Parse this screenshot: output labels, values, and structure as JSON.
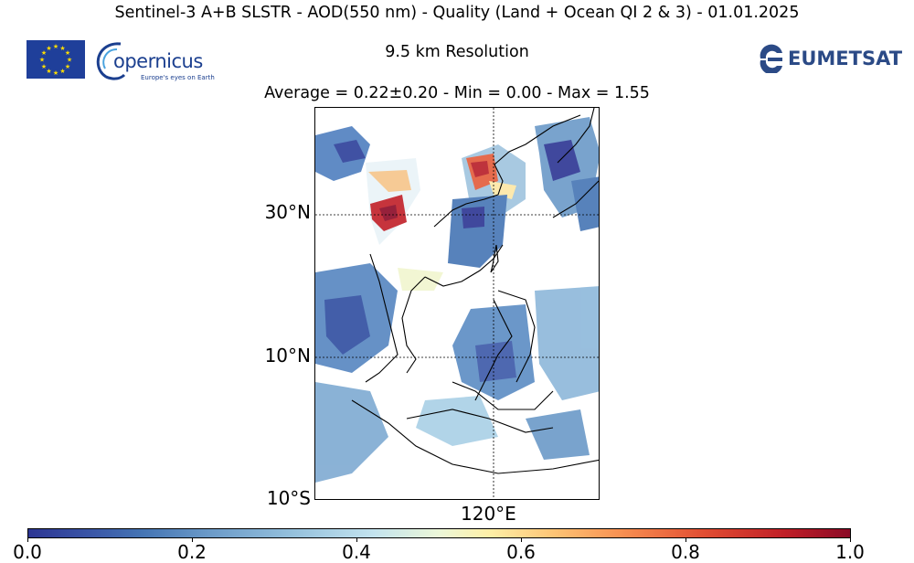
{
  "header": {
    "title": "Sentinel-3 A+B SLSTR - AOD(550 nm) - Quality (Land + Ocean QI 2 & 3) - 01.01.2025",
    "subtitle": "9.5 km Resolution",
    "stats": "Average = 0.22±0.20 - Min = 0.00 - Max = 1.55"
  },
  "logos": {
    "copernicus_word": "opernicus",
    "copernicus_tagline": "Europe's eyes on Earth",
    "eumetsat_word": "EUMETSAT"
  },
  "map": {
    "lat_labels": [
      "30°N",
      "10°N",
      "10°S"
    ],
    "lon_labels": [
      "120°E"
    ],
    "colors": {
      "low": "#2c3593",
      "mid": "#ecf7d8",
      "high": "#8b0a26",
      "land_outline": "#000000"
    }
  },
  "colorbar": {
    "ticks": [
      "0.0",
      "0.2",
      "0.4",
      "0.6",
      "0.8",
      "1.0"
    ],
    "range": [
      0.0,
      1.0
    ]
  }
}
